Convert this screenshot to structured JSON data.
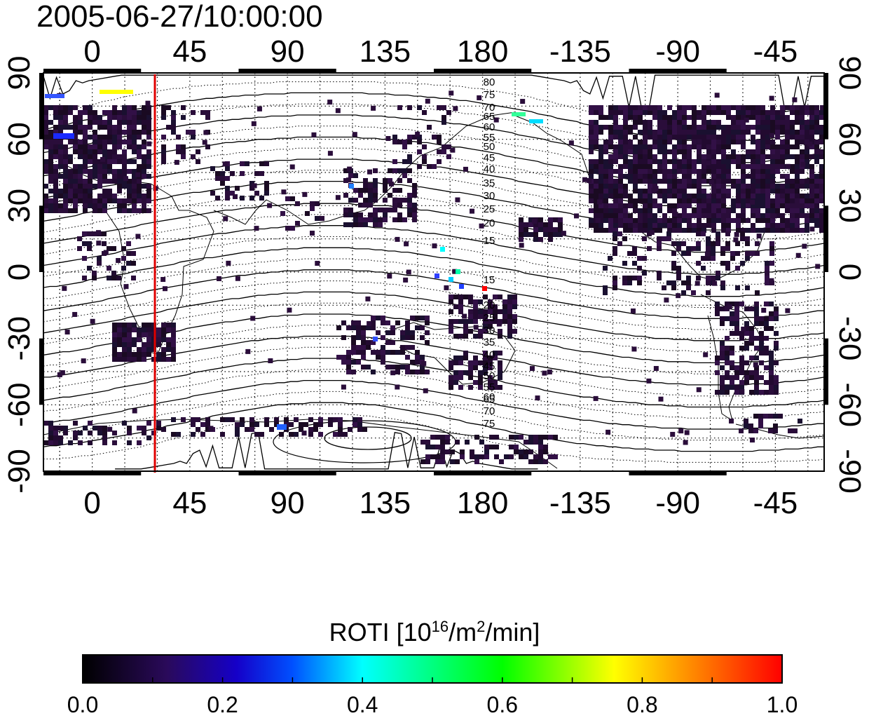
{
  "title": "2005-06-27/10:00:00",
  "map": {
    "top_lon_labels": [
      "0",
      "45",
      "90",
      "135",
      "180",
      "-135",
      "-90",
      "-45"
    ],
    "bottom_lon_labels": [
      "0",
      "45",
      "90",
      "135",
      "180",
      "-135",
      "-90",
      "-45"
    ],
    "left_lat_labels": [
      "90",
      "60",
      "30",
      "0",
      "-30",
      "-60",
      "-90"
    ],
    "right_lat_labels": [
      "90",
      "60",
      "30",
      "0",
      "-30",
      "-60",
      "-90"
    ],
    "contour_labels_north": [
      "80",
      "75",
      "70",
      "65",
      "60",
      "55",
      "50",
      "45",
      "40",
      "35",
      "30",
      "25",
      "20",
      "15"
    ],
    "contour_labels_south": [
      "15",
      "20",
      "25",
      "30",
      "35",
      "40",
      "45",
      "50",
      "55",
      "60",
      "65",
      "70",
      "75"
    ],
    "marker_line_color": "#e00000"
  },
  "colorbar": {
    "title_main": "ROTI  [10",
    "title_sup1": "16",
    "title_mid": "/m",
    "title_sup2": "2",
    "title_end": "/min]",
    "tick_labels": [
      "0.0",
      "0.2",
      "0.4",
      "0.6",
      "0.8",
      "1.0"
    ],
    "min": 0.0,
    "max": 1.0,
    "colors": [
      "#000000",
      "#3a0a6e",
      "#0000ff",
      "#00ffff",
      "#00ff00",
      "#ffff00",
      "#ff0000"
    ]
  }
}
